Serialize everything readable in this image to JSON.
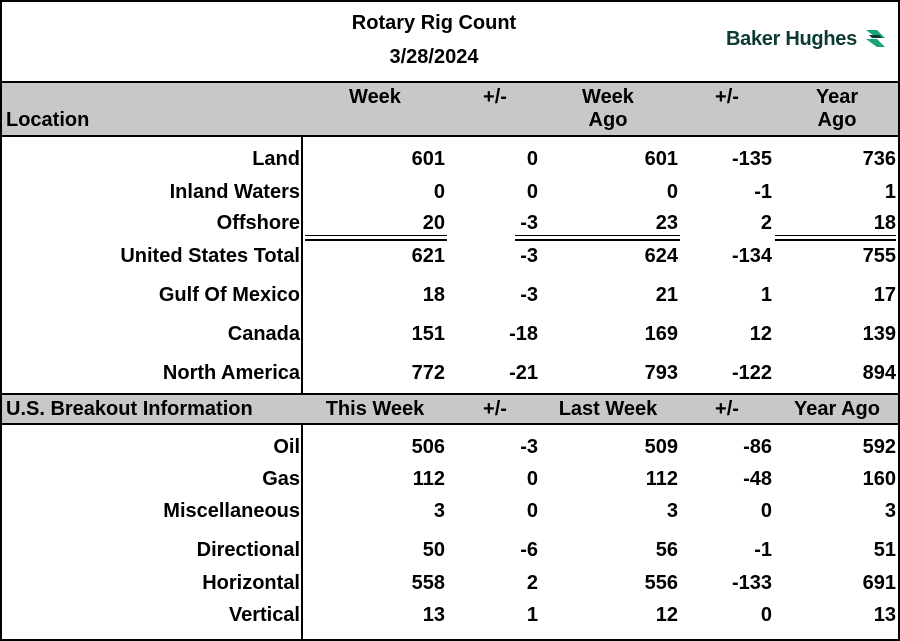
{
  "header": {
    "title": "Rotary Rig Count",
    "date": "3/28/2024",
    "logo_text": "Baker Hughes",
    "logo_color": "#0b3b33",
    "logo_accent": "#1aa37a"
  },
  "location_table": {
    "columns": {
      "location": "Location",
      "week": "Week",
      "change1": "+/-",
      "week_ago_line1": "Week",
      "week_ago_line2": "Ago",
      "change2": "+/-",
      "year_ago_line1": "Year",
      "year_ago_line2": "Ago"
    },
    "rows": [
      {
        "label": "Land",
        "week": "601",
        "change1": "0",
        "week_ago": "601",
        "change2": "-135",
        "year_ago": "736"
      },
      {
        "label": "Inland Waters",
        "week": "0",
        "change1": "0",
        "week_ago": "0",
        "change2": "-1",
        "year_ago": "1"
      },
      {
        "label": "Offshore",
        "week": "20",
        "change1": "-3",
        "week_ago": "23",
        "change2": "2",
        "year_ago": "18"
      },
      {
        "label": "United States Total",
        "week": "621",
        "change1": "-3",
        "week_ago": "624",
        "change2": "-134",
        "year_ago": "755"
      },
      {
        "label": "Gulf Of Mexico",
        "week": "18",
        "change1": "-3",
        "week_ago": "21",
        "change2": "1",
        "year_ago": "17"
      },
      {
        "label": "Canada",
        "week": "151",
        "change1": "-18",
        "week_ago": "169",
        "change2": "12",
        "year_ago": "139"
      },
      {
        "label": "North America",
        "week": "772",
        "change1": "-21",
        "week_ago": "793",
        "change2": "-122",
        "year_ago": "894"
      }
    ]
  },
  "breakout_table": {
    "columns": {
      "section": "U.S. Breakout Information",
      "this_week": "This Week",
      "change1": "+/-",
      "last_week": "Last Week",
      "change2": "+/-",
      "year_ago": "Year Ago"
    },
    "rows": [
      {
        "label": "Oil",
        "this_week": "506",
        "change1": "-3",
        "last_week": "509",
        "change2": "-86",
        "year_ago": "592"
      },
      {
        "label": "Gas",
        "this_week": "112",
        "change1": "0",
        "last_week": "112",
        "change2": "-48",
        "year_ago": "160"
      },
      {
        "label": "Miscellaneous",
        "this_week": "3",
        "change1": "0",
        "last_week": "3",
        "change2": "0",
        "year_ago": "3"
      },
      {
        "label": "Directional",
        "this_week": "50",
        "change1": "-6",
        "last_week": "56",
        "change2": "-1",
        "year_ago": "51"
      },
      {
        "label": "Horizontal",
        "this_week": "558",
        "change1": "2",
        "last_week": "556",
        "change2": "-133",
        "year_ago": "691"
      },
      {
        "label": "Vertical",
        "this_week": "13",
        "change1": "1",
        "last_week": "12",
        "change2": "0",
        "year_ago": "13"
      }
    ]
  }
}
